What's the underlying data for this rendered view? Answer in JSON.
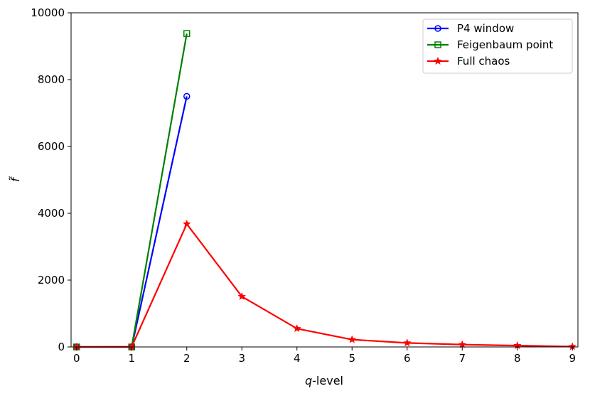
{
  "chart_data": {
    "type": "line",
    "xlabel_italic": "q",
    "xlabel_rest": "-level",
    "ylabel": "f̃",
    "xlim": [
      -0.1,
      9.1
    ],
    "ylim": [
      0,
      10000
    ],
    "xticks": [
      "0",
      "1",
      "2",
      "3",
      "4",
      "5",
      "6",
      "7",
      "8",
      "9"
    ],
    "yticks": [
      "0",
      "2000",
      "4000",
      "6000",
      "8000",
      "10000"
    ],
    "legend_position": "top-right",
    "series": [
      {
        "name": "P4 window",
        "color": "#0000ff",
        "marker": "circle",
        "x": [
          0,
          1,
          2
        ],
        "y": [
          0,
          0,
          7500
        ]
      },
      {
        "name": "Feigenbaum point",
        "color": "#008000",
        "marker": "square",
        "x": [
          0,
          1,
          2
        ],
        "y": [
          0,
          0,
          9380
        ]
      },
      {
        "name": "Full chaos",
        "color": "#ff0000",
        "marker": "star",
        "x": [
          0,
          1,
          2,
          3,
          4,
          5,
          6,
          7,
          8,
          9
        ],
        "y": [
          0,
          5,
          3680,
          1510,
          550,
          220,
          120,
          70,
          40,
          10
        ]
      }
    ]
  }
}
